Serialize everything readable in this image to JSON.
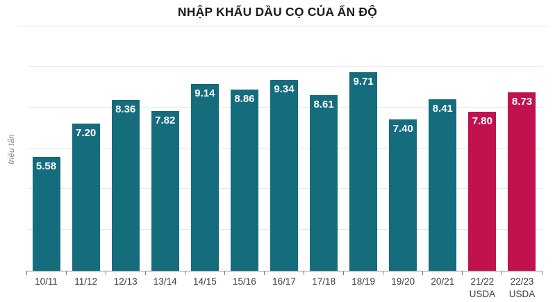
{
  "chart_data": {
    "type": "bar",
    "title": "NHẬP KHẨU DẦU CỌ CỦA ẤN ĐỘ",
    "ylabel": "triệu tấn",
    "xlabel": "",
    "categories": [
      "10/11",
      "11/12",
      "12/13",
      "13/14",
      "14/15",
      "15/16",
      "16/17",
      "17/18",
      "18/19",
      "19/20",
      "20/21",
      "21/22",
      "22/23"
    ],
    "category_sublabels": [
      "",
      "",
      "",
      "",
      "",
      "",
      "",
      "",
      "",
      "",
      "",
      "USDA",
      "USDA"
    ],
    "values": [
      5.58,
      7.2,
      8.36,
      7.82,
      9.14,
      8.86,
      9.34,
      8.61,
      9.71,
      7.4,
      8.41,
      7.8,
      8.73
    ],
    "value_labels": [
      "5.58",
      "7.20",
      "8.36",
      "7.82",
      "9.14",
      "8.86",
      "9.34",
      "8.61",
      "9.71",
      "7.40",
      "8.41",
      "7.80",
      "8.73"
    ],
    "ylim": [
      0,
      12
    ],
    "gridline_step": 2,
    "grid": true,
    "legend_position": "none",
    "colors": {
      "actual_bar": "#156c7c",
      "forecast_bar": "#c1114f",
      "value_label_text": "#ffffff",
      "gridline": "#e9e9e9",
      "axis_line": "#8f8f8f",
      "title_text": "#1b1b1b",
      "tick_label_text": "#3c3c3c"
    },
    "forecast_indices": [
      11,
      12
    ]
  }
}
